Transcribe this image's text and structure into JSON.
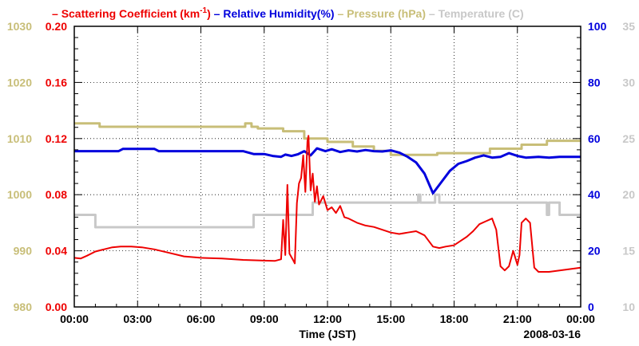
{
  "chart_data": {
    "type": "line",
    "legend": [
      {
        "name": "Scattering Coefficient (km",
        "sup": "-1",
        "tail": ")",
        "color": "#ee0000"
      },
      {
        "name": "Relative Humidity(%)",
        "color": "#0000dd"
      },
      {
        "name": "Pressure (hPa)",
        "color": "#c8be78"
      },
      {
        "name": "Temperature (C)",
        "color": "#c8c8c8"
      }
    ],
    "xlabel": "Time (JST)",
    "date_label": "2008-03-16",
    "x_ticks": [
      "00:00",
      "03:00",
      "06:00",
      "09:00",
      "12:00",
      "15:00",
      "18:00",
      "21:00",
      "00:00"
    ],
    "xlim_hours": [
      0,
      24
    ],
    "axes": {
      "pressure": {
        "range": [
          980,
          1030
        ],
        "ticks": [
          "980",
          "990",
          "1000",
          "1010",
          "1020",
          "1030"
        ],
        "color": "#c8be78"
      },
      "scattering": {
        "range": [
          0.0,
          0.2
        ],
        "ticks": [
          "0.00",
          "0.04",
          "0.08",
          "0.12",
          "0.16",
          "0.20"
        ],
        "color": "#ee0000"
      },
      "humidity": {
        "range": [
          0,
          100
        ],
        "ticks": [
          "0",
          "20",
          "40",
          "60",
          "80",
          "100"
        ],
        "color": "#0000dd"
      },
      "temperature": {
        "range": [
          10,
          35
        ],
        "ticks": [
          "10",
          "15",
          "20",
          "25",
          "30",
          "35"
        ],
        "color": "#c8c8c8"
      }
    },
    "series": [
      {
        "name": "Pressure (hPa)",
        "axis": "pressure",
        "color": "#c8be78",
        "step": true,
        "points": [
          [
            0,
            1012.7
          ],
          [
            1.2,
            1012.7
          ],
          [
            1.2,
            1012.1
          ],
          [
            8.1,
            1012.1
          ],
          [
            8.1,
            1012.7
          ],
          [
            8.4,
            1012.7
          ],
          [
            8.4,
            1012.1
          ],
          [
            8.7,
            1012.1
          ],
          [
            8.7,
            1011.8
          ],
          [
            9.9,
            1011.8
          ],
          [
            9.9,
            1011.3
          ],
          [
            10.9,
            1011.3
          ],
          [
            10.9,
            1010.0
          ],
          [
            12.0,
            1010.0
          ],
          [
            12.0,
            1009.4
          ],
          [
            13.2,
            1009.4
          ],
          [
            13.2,
            1008.6
          ],
          [
            14.2,
            1008.6
          ],
          [
            14.2,
            1007.8
          ],
          [
            15.0,
            1007.8
          ],
          [
            15.0,
            1007.1
          ],
          [
            17.2,
            1007.1
          ],
          [
            17.2,
            1007.4
          ],
          [
            19.7,
            1007.4
          ],
          [
            19.7,
            1008.2
          ],
          [
            21.2,
            1008.2
          ],
          [
            21.2,
            1008.9
          ],
          [
            22.4,
            1008.9
          ],
          [
            22.4,
            1009.6
          ],
          [
            24,
            1009.6
          ]
        ]
      },
      {
        "name": "Temperature (C)",
        "axis": "temperature",
        "color": "#c8c8c8",
        "step": true,
        "points": [
          [
            0,
            18.2
          ],
          [
            1.0,
            18.2
          ],
          [
            1.0,
            17.1
          ],
          [
            8.5,
            17.1
          ],
          [
            8.5,
            18.2
          ],
          [
            11.3,
            18.2
          ],
          [
            11.3,
            19.3
          ],
          [
            16.3,
            19.3
          ],
          [
            16.3,
            20.0
          ],
          [
            16.4,
            20.0
          ],
          [
            16.4,
            19.3
          ],
          [
            17.1,
            19.3
          ],
          [
            17.1,
            20.0
          ],
          [
            17.3,
            20.0
          ],
          [
            17.3,
            19.3
          ],
          [
            22.4,
            19.3
          ],
          [
            22.4,
            18.2
          ],
          [
            22.5,
            18.2
          ],
          [
            22.5,
            19.3
          ],
          [
            23.0,
            19.3
          ],
          [
            23.0,
            18.2
          ],
          [
            24,
            18.2
          ]
        ]
      },
      {
        "name": "Relative Humidity(%)",
        "axis": "humidity",
        "color": "#0000dd",
        "step": false,
        "points": [
          [
            0,
            55.5
          ],
          [
            2.1,
            55.5
          ],
          [
            2.3,
            56.3
          ],
          [
            3.0,
            56.3
          ],
          [
            3.8,
            56.3
          ],
          [
            4.0,
            55.5
          ],
          [
            8.0,
            55.5
          ],
          [
            8.5,
            54.5
          ],
          [
            9.0,
            54.5
          ],
          [
            9.4,
            53.8
          ],
          [
            9.8,
            53.5
          ],
          [
            10.0,
            54.3
          ],
          [
            10.3,
            53.8
          ],
          [
            10.6,
            54.4
          ],
          [
            10.9,
            55.5
          ],
          [
            11.2,
            54.0
          ],
          [
            11.5,
            56.5
          ],
          [
            11.9,
            55.5
          ],
          [
            12.2,
            56.2
          ],
          [
            12.6,
            55.2
          ],
          [
            13.0,
            55.8
          ],
          [
            13.4,
            55.4
          ],
          [
            13.8,
            55.9
          ],
          [
            14.2,
            55.5
          ],
          [
            14.6,
            55.4
          ],
          [
            15.0,
            55.8
          ],
          [
            15.4,
            55.0
          ],
          [
            15.8,
            53.5
          ],
          [
            16.2,
            51.5
          ],
          [
            16.6,
            47.5
          ],
          [
            17.0,
            40.5
          ],
          [
            17.4,
            44.5
          ],
          [
            17.8,
            48.5
          ],
          [
            18.2,
            51.0
          ],
          [
            18.6,
            52.0
          ],
          [
            19.0,
            53.2
          ],
          [
            19.4,
            54.0
          ],
          [
            19.8,
            53.2
          ],
          [
            20.2,
            53.5
          ],
          [
            20.6,
            54.8
          ],
          [
            21.0,
            53.8
          ],
          [
            21.4,
            53.2
          ],
          [
            22.0,
            53.5
          ],
          [
            22.5,
            53.2
          ],
          [
            23.0,
            53.5
          ],
          [
            24,
            53.5
          ]
        ]
      },
      {
        "name": "Scattering Coefficient",
        "axis": "scattering",
        "color": "#ee0000",
        "step": false,
        "points": [
          [
            0,
            0.035
          ],
          [
            0.3,
            0.0345
          ],
          [
            0.6,
            0.0365
          ],
          [
            1.0,
            0.0395
          ],
          [
            1.4,
            0.041
          ],
          [
            1.8,
            0.0425
          ],
          [
            2.2,
            0.043
          ],
          [
            2.7,
            0.043
          ],
          [
            3.2,
            0.0425
          ],
          [
            3.8,
            0.041
          ],
          [
            4.5,
            0.0385
          ],
          [
            5.2,
            0.036
          ],
          [
            6.0,
            0.035
          ],
          [
            7.0,
            0.0345
          ],
          [
            8.0,
            0.0335
          ],
          [
            9.0,
            0.033
          ],
          [
            9.5,
            0.0328
          ],
          [
            9.8,
            0.034
          ],
          [
            9.9,
            0.062
          ],
          [
            10.0,
            0.037
          ],
          [
            10.1,
            0.087
          ],
          [
            10.2,
            0.038
          ],
          [
            10.35,
            0.034
          ],
          [
            10.45,
            0.031
          ],
          [
            10.55,
            0.074
          ],
          [
            10.65,
            0.088
          ],
          [
            10.75,
            0.092
          ],
          [
            10.85,
            0.108
          ],
          [
            10.95,
            0.082
          ],
          [
            11.05,
            0.118
          ],
          [
            11.1,
            0.122
          ],
          [
            11.2,
            0.083
          ],
          [
            11.3,
            0.095
          ],
          [
            11.4,
            0.075
          ],
          [
            11.5,
            0.086
          ],
          [
            11.6,
            0.073
          ],
          [
            11.8,
            0.079
          ],
          [
            12.0,
            0.069
          ],
          [
            12.2,
            0.071
          ],
          [
            12.4,
            0.067
          ],
          [
            12.6,
            0.072
          ],
          [
            12.8,
            0.064
          ],
          [
            13.0,
            0.063
          ],
          [
            13.4,
            0.06
          ],
          [
            13.8,
            0.058
          ],
          [
            14.2,
            0.057
          ],
          [
            14.6,
            0.055
          ],
          [
            15.0,
            0.053
          ],
          [
            15.4,
            0.052
          ],
          [
            15.8,
            0.053
          ],
          [
            16.2,
            0.054
          ],
          [
            16.6,
            0.051
          ],
          [
            17.0,
            0.043
          ],
          [
            17.3,
            0.042
          ],
          [
            17.6,
            0.043
          ],
          [
            18.0,
            0.044
          ],
          [
            18.3,
            0.047
          ],
          [
            18.6,
            0.05
          ],
          [
            18.9,
            0.054
          ],
          [
            19.2,
            0.059
          ],
          [
            19.5,
            0.061
          ],
          [
            19.8,
            0.063
          ],
          [
            20.0,
            0.055
          ],
          [
            20.2,
            0.029
          ],
          [
            20.4,
            0.026
          ],
          [
            20.6,
            0.029
          ],
          [
            20.8,
            0.04
          ],
          [
            21.0,
            0.03
          ],
          [
            21.1,
            0.037
          ],
          [
            21.2,
            0.06
          ],
          [
            21.4,
            0.063
          ],
          [
            21.6,
            0.06
          ],
          [
            21.8,
            0.028
          ],
          [
            22.0,
            0.025
          ],
          [
            22.5,
            0.025
          ],
          [
            23.0,
            0.026
          ],
          [
            23.5,
            0.027
          ],
          [
            24,
            0.028
          ]
        ]
      }
    ]
  }
}
